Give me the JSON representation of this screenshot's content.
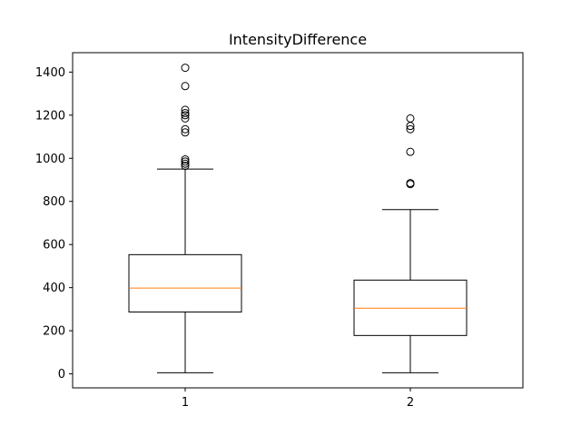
{
  "chart_data": {
    "type": "box",
    "title": "IntensityDifference",
    "xlabel": "",
    "ylabel": "",
    "categories": [
      "1",
      "2"
    ],
    "ylim": [
      -65,
      1490
    ],
    "yticks": [
      0,
      200,
      400,
      600,
      800,
      1000,
      1200,
      1400
    ],
    "boxes": [
      {
        "label": "1",
        "whisker_low": 5,
        "q1": 287,
        "median": 398,
        "q3": 553,
        "whisker_high": 950,
        "outliers": [
          965,
          975,
          985,
          995,
          1120,
          1135,
          1185,
          1200,
          1210,
          1225,
          1335,
          1420
        ]
      },
      {
        "label": "2",
        "whisker_low": 5,
        "q1": 178,
        "median": 305,
        "q3": 435,
        "whisker_high": 762,
        "outliers": [
          880,
          885,
          1030,
          1135,
          1150,
          1185
        ]
      }
    ],
    "colors": {
      "box": "#000000",
      "median": "#ff7f0e",
      "outlier": "#000000"
    },
    "grid": false,
    "legend": "none"
  }
}
